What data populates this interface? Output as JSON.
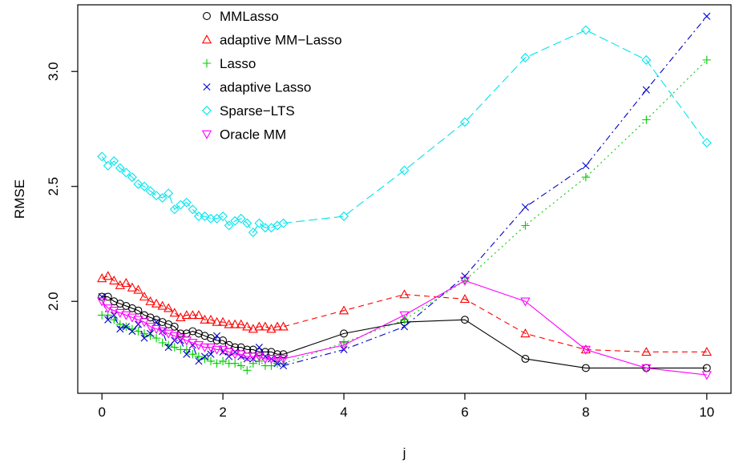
{
  "chart_data": {
    "type": "line",
    "xlabel": "j",
    "ylabel": "RMSE",
    "xlim": [
      -0.4,
      10.4
    ],
    "ylim": [
      1.6,
      3.29
    ],
    "xticks": [
      0,
      2,
      4,
      6,
      8,
      10
    ],
    "yticks": [
      2.0,
      2.5,
      3.0
    ],
    "xtick_labels": [
      "0",
      "2",
      "4",
      "6",
      "8",
      "10"
    ],
    "ytick_labels": [
      "2.0",
      "2.5",
      "3.0"
    ],
    "grid": false,
    "legend_position": "top-left",
    "x": [
      0,
      0.1,
      0.2,
      0.3,
      0.4,
      0.5,
      0.6,
      0.7,
      0.8,
      0.9,
      1.0,
      1.1,
      1.2,
      1.3,
      1.4,
      1.5,
      1.6,
      1.7,
      1.8,
      1.9,
      2.0,
      2.1,
      2.2,
      2.3,
      2.4,
      2.5,
      2.6,
      2.7,
      2.8,
      2.9,
      3.0,
      4,
      5,
      6,
      7,
      8,
      9,
      10
    ],
    "series": [
      {
        "name": "MMLasso",
        "color": "#000000",
        "marker": "circle",
        "dash": "solid",
        "values": [
          2.02,
          2.02,
          2.0,
          1.99,
          1.98,
          1.97,
          1.96,
          1.94,
          1.93,
          1.92,
          1.91,
          1.9,
          1.89,
          1.86,
          1.86,
          1.87,
          1.86,
          1.85,
          1.84,
          1.83,
          1.83,
          1.81,
          1.8,
          1.8,
          1.79,
          1.79,
          1.78,
          1.78,
          1.78,
          1.77,
          1.77,
          1.86,
          1.91,
          1.92,
          1.75,
          1.71,
          1.71,
          1.71
        ]
      },
      {
        "name": "adaptive MM−Lasso",
        "color": "#ff0000",
        "marker": "triangle-up",
        "dash": "dashed",
        "values": [
          2.1,
          2.11,
          2.09,
          2.07,
          2.08,
          2.06,
          2.05,
          2.02,
          2.0,
          1.99,
          1.98,
          1.97,
          1.95,
          1.93,
          1.94,
          1.94,
          1.94,
          1.92,
          1.92,
          1.91,
          1.91,
          1.9,
          1.9,
          1.9,
          1.89,
          1.88,
          1.89,
          1.89,
          1.88,
          1.89,
          1.89,
          1.96,
          2.03,
          2.01,
          1.86,
          1.79,
          1.78,
          1.78
        ]
      },
      {
        "name": "Lasso",
        "color": "#00cd00",
        "marker": "plus",
        "dash": "dotted",
        "values": [
          1.94,
          1.94,
          1.92,
          1.9,
          1.89,
          1.88,
          1.87,
          1.86,
          1.85,
          1.84,
          1.82,
          1.81,
          1.8,
          1.79,
          1.79,
          1.77,
          1.76,
          1.75,
          1.74,
          1.73,
          1.74,
          1.73,
          1.73,
          1.72,
          1.7,
          1.73,
          1.74,
          1.72,
          1.72,
          1.73,
          1.73,
          1.82,
          1.92,
          2.09,
          2.33,
          2.54,
          2.79,
          3.05
        ]
      },
      {
        "name": "adaptive Lasso",
        "color": "#0000cd",
        "marker": "x",
        "dash": "dotdash",
        "values": [
          2.02,
          1.92,
          1.94,
          1.88,
          1.89,
          1.87,
          1.9,
          1.84,
          1.86,
          1.91,
          1.87,
          1.8,
          1.83,
          1.83,
          1.77,
          1.81,
          1.74,
          1.76,
          1.77,
          1.85,
          1.78,
          1.76,
          1.78,
          1.76,
          1.75,
          1.75,
          1.8,
          1.76,
          1.75,
          1.73,
          1.72,
          1.79,
          1.89,
          2.11,
          2.41,
          2.59,
          2.92,
          3.24
        ]
      },
      {
        "name": "Sparse−LTS",
        "color": "#00e5ee",
        "marker": "diamond",
        "dash": "longdash",
        "values": [
          2.63,
          2.59,
          2.61,
          2.58,
          2.56,
          2.54,
          2.51,
          2.5,
          2.48,
          2.46,
          2.45,
          2.47,
          2.4,
          2.42,
          2.43,
          2.4,
          2.37,
          2.37,
          2.36,
          2.36,
          2.37,
          2.33,
          2.35,
          2.36,
          2.34,
          2.3,
          2.34,
          2.32,
          2.32,
          2.33,
          2.34,
          2.37,
          2.57,
          2.78,
          3.06,
          3.18,
          3.05,
          2.69
        ]
      },
      {
        "name": "Oracle MM",
        "color": "#ff00ff",
        "marker": "triangle-down",
        "dash": "solid",
        "values": [
          2.0,
          1.97,
          1.96,
          1.95,
          1.94,
          1.93,
          1.92,
          1.91,
          1.89,
          1.88,
          1.87,
          1.86,
          1.85,
          1.84,
          1.83,
          1.82,
          1.81,
          1.8,
          1.8,
          1.79,
          1.79,
          1.78,
          1.77,
          1.77,
          1.76,
          1.76,
          1.76,
          1.75,
          1.75,
          1.75,
          1.75,
          1.81,
          1.94,
          2.09,
          2.0,
          1.79,
          1.71,
          1.68
        ]
      }
    ]
  }
}
